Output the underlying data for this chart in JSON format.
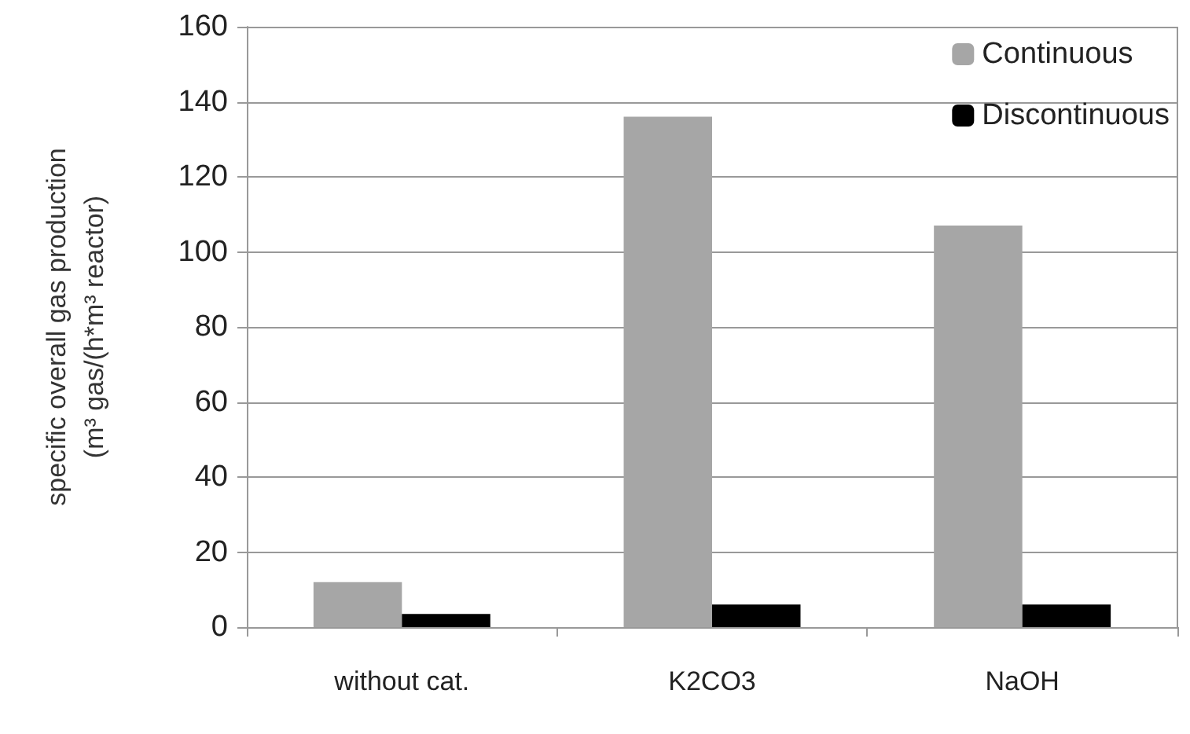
{
  "chart_data": {
    "type": "bar",
    "ylabel": "specific overall gas production\n(m³ gas/(h*m³ reactor)",
    "categories": [
      "without cat.",
      "K2CO3",
      "NaOH"
    ],
    "series": [
      {
        "name": "Continuous",
        "color": "#a6a6a6",
        "values": [
          12,
          136,
          107
        ]
      },
      {
        "name": "Discontinuous",
        "color": "#000000",
        "values": [
          3.5,
          6,
          6
        ]
      }
    ],
    "ylim": [
      0,
      160
    ],
    "yticks": [
      0,
      20,
      40,
      60,
      80,
      100,
      120,
      140,
      160
    ],
    "grid": "y",
    "legend": "top right"
  }
}
